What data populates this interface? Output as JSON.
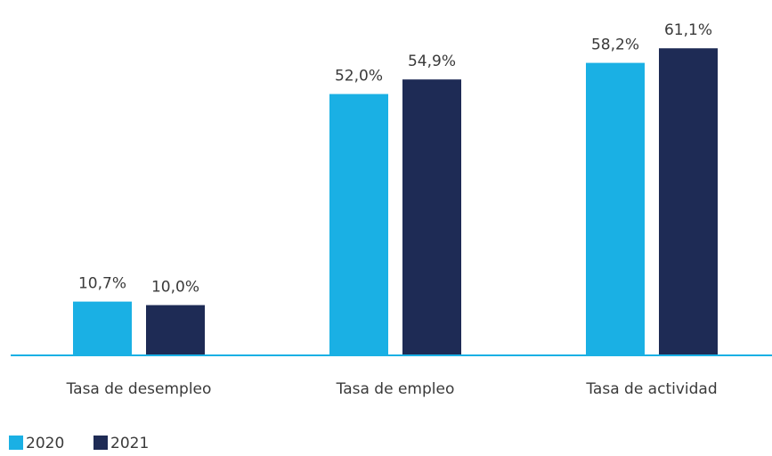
{
  "chart_data": {
    "type": "bar",
    "categories": [
      "Tasa de desempleo",
      "Tasa de empleo",
      "Tasa de actividad"
    ],
    "series": [
      {
        "name": "2020",
        "color": "#1ab0e4",
        "values": [
          10.7,
          52.0,
          58.2
        ],
        "value_labels": [
          "10,7%",
          "52,0%",
          "58,2%"
        ]
      },
      {
        "name": "2021",
        "color": "#1e2b55",
        "values": [
          10.0,
          54.9,
          61.1
        ],
        "value_labels": [
          "10,0%",
          "54,9%",
          "61,1%"
        ]
      }
    ],
    "ylim": [
      0,
      70
    ],
    "legend": "bottom-left"
  }
}
